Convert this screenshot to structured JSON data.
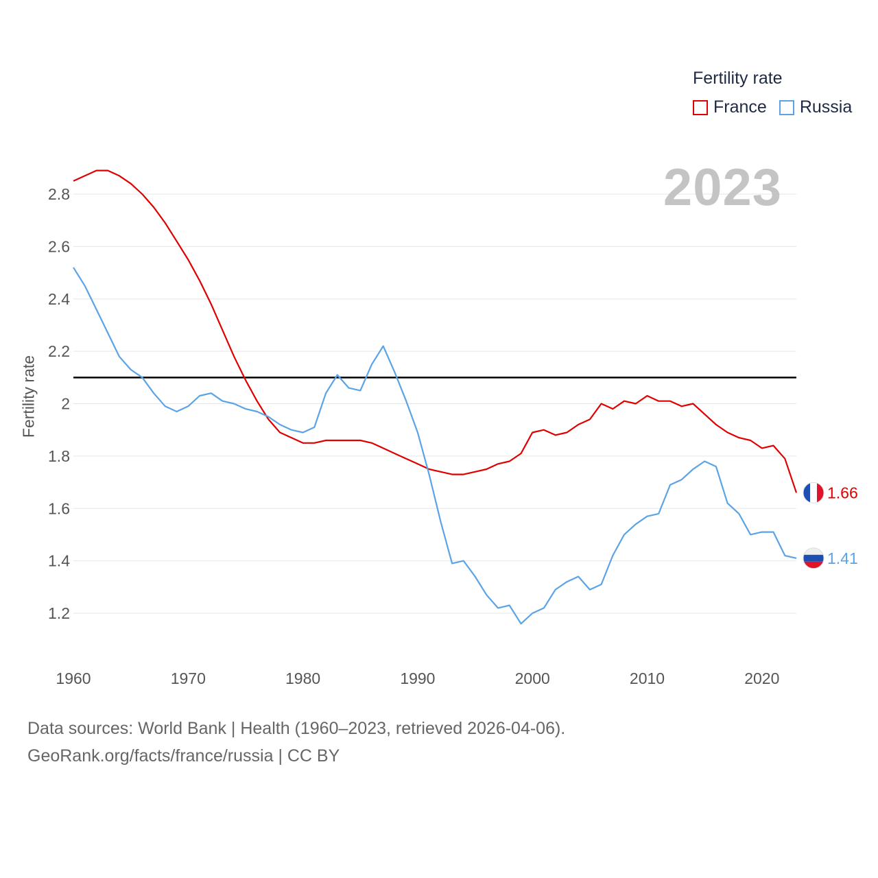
{
  "legend": {
    "title": "Fertility rate",
    "items": [
      {
        "name": "France",
        "color": "#e00000"
      },
      {
        "name": "Russia",
        "color": "#5aa3e6"
      }
    ]
  },
  "year_display": "2023",
  "footer": {
    "line1": "Data sources: World Bank | Health (1960–2023, retrieved 2026-04-06).",
    "line2": "GeoRank.org/facts/france/russia | CC BY"
  },
  "chart_data": {
    "type": "line",
    "title": "",
    "xlabel": "",
    "ylabel": "Fertility rate",
    "xlim": [
      1960,
      2023
    ],
    "ylim": [
      1.1,
      2.9
    ],
    "x_ticks": [
      1960,
      1970,
      1980,
      1990,
      2000,
      2010,
      2020
    ],
    "y_ticks": [
      1.2,
      1.4,
      1.6,
      1.8,
      2,
      2.2,
      2.4,
      2.6,
      2.8
    ],
    "y_tick_labels": [
      "1.2",
      "1.4",
      "1.6",
      "1.8",
      "2",
      "2.2",
      "2.4",
      "2.6",
      "2.8"
    ],
    "grid": true,
    "reference_line": {
      "y": 2.1,
      "color": "#000000"
    },
    "x": [
      1960,
      1961,
      1962,
      1963,
      1964,
      1965,
      1966,
      1967,
      1968,
      1969,
      1970,
      1971,
      1972,
      1973,
      1974,
      1975,
      1976,
      1977,
      1978,
      1979,
      1980,
      1981,
      1982,
      1983,
      1984,
      1985,
      1986,
      1987,
      1988,
      1989,
      1990,
      1991,
      1992,
      1993,
      1994,
      1995,
      1996,
      1997,
      1998,
      1999,
      2000,
      2001,
      2002,
      2003,
      2004,
      2005,
      2006,
      2007,
      2008,
      2009,
      2010,
      2011,
      2012,
      2013,
      2014,
      2015,
      2016,
      2017,
      2018,
      2019,
      2020,
      2021,
      2022,
      2023
    ],
    "series": [
      {
        "name": "France",
        "color": "#e00000",
        "end_label": "1.66",
        "values": [
          2.85,
          2.87,
          2.89,
          2.89,
          2.87,
          2.84,
          2.8,
          2.75,
          2.69,
          2.62,
          2.55,
          2.47,
          2.38,
          2.28,
          2.18,
          2.09,
          2.01,
          1.94,
          1.89,
          1.87,
          1.85,
          1.85,
          1.86,
          1.86,
          1.86,
          1.86,
          1.85,
          1.83,
          1.81,
          1.79,
          1.77,
          1.75,
          1.74,
          1.73,
          1.73,
          1.74,
          1.75,
          1.77,
          1.78,
          1.81,
          1.89,
          1.9,
          1.88,
          1.89,
          1.92,
          1.94,
          2.0,
          1.98,
          2.01,
          2.0,
          2.03,
          2.01,
          2.01,
          1.99,
          2.0,
          1.96,
          1.92,
          1.89,
          1.87,
          1.86,
          1.83,
          1.84,
          1.79,
          1.66
        ]
      },
      {
        "name": "Russia",
        "color": "#5aa3e6",
        "end_label": "1.41",
        "values": [
          2.52,
          2.45,
          2.36,
          2.27,
          2.18,
          2.13,
          2.1,
          2.04,
          1.99,
          1.97,
          1.99,
          2.03,
          2.04,
          2.01,
          2.0,
          1.98,
          1.97,
          1.95,
          1.92,
          1.9,
          1.89,
          1.91,
          2.04,
          2.11,
          2.06,
          2.05,
          2.15,
          2.22,
          2.12,
          2.01,
          1.89,
          1.73,
          1.55,
          1.39,
          1.4,
          1.34,
          1.27,
          1.22,
          1.23,
          1.16,
          1.2,
          1.22,
          1.29,
          1.32,
          1.34,
          1.29,
          1.31,
          1.42,
          1.5,
          1.54,
          1.57,
          1.58,
          1.69,
          1.71,
          1.75,
          1.78,
          1.76,
          1.62,
          1.58,
          1.5,
          1.51,
          1.51,
          1.42,
          1.41
        ]
      }
    ]
  }
}
